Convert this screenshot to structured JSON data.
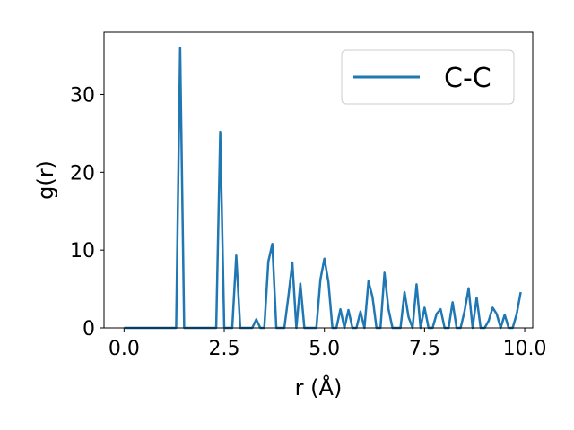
{
  "chart_data": {
    "type": "line",
    "title": "",
    "xlabel": "r (Å)",
    "ylabel": "g(r)",
    "xlim": [
      -0.5,
      10.2
    ],
    "ylim": [
      0,
      38
    ],
    "xticks": [
      0.0,
      2.5,
      5.0,
      7.5,
      10.0
    ],
    "xtick_labels": [
      "0.0",
      "2.5",
      "5.0",
      "7.5",
      "10.0"
    ],
    "yticks": [
      0,
      10,
      20,
      30
    ],
    "ytick_labels": [
      "0",
      "10",
      "20",
      "30"
    ],
    "grid": false,
    "legend_position": "top-right",
    "series": [
      {
        "name": "C-C",
        "color": "#1f77b4",
        "x": [
          0.0,
          0.1,
          0.2,
          0.3,
          0.4,
          0.5,
          0.6,
          0.7,
          0.8,
          0.9,
          1.0,
          1.1,
          1.2,
          1.3,
          1.4,
          1.5,
          1.6,
          1.7,
          1.8,
          1.9,
          2.0,
          2.1,
          2.2,
          2.3,
          2.4,
          2.5,
          2.6,
          2.7,
          2.8,
          2.9,
          3.0,
          3.1,
          3.2,
          3.3,
          3.4,
          3.5,
          3.6,
          3.7,
          3.8,
          3.9,
          4.0,
          4.1,
          4.2,
          4.3,
          4.4,
          4.5,
          4.6,
          4.7,
          4.8,
          4.9,
          5.0,
          5.1,
          5.2,
          5.3,
          5.4,
          5.5,
          5.6,
          5.7,
          5.8,
          5.9,
          6.0,
          6.1,
          6.2,
          6.3,
          6.4,
          6.5,
          6.6,
          6.7,
          6.8,
          6.9,
          7.0,
          7.1,
          7.2,
          7.3,
          7.4,
          7.5,
          7.6,
          7.7,
          7.8,
          7.9,
          8.0,
          8.1,
          8.2,
          8.3,
          8.4,
          8.5,
          8.6,
          8.7,
          8.8,
          8.9,
          9.0,
          9.1,
          9.2,
          9.3,
          9.4,
          9.5,
          9.6,
          9.7,
          9.8,
          9.9
        ],
        "y": [
          0,
          0,
          0,
          0,
          0,
          0,
          0,
          0,
          0,
          0,
          0,
          0,
          0,
          0,
          36,
          0,
          0,
          0,
          0,
          0,
          0,
          0,
          0,
          0,
          25.2,
          0,
          0,
          0,
          9.3,
          0,
          0,
          0,
          0,
          1.1,
          0,
          0,
          8.5,
          10.8,
          0,
          0,
          0,
          4.0,
          8.4,
          0,
          5.7,
          0,
          0,
          0,
          0,
          6.2,
          8.9,
          5.9,
          0,
          0,
          2.4,
          0,
          2.3,
          0,
          0,
          2.1,
          0,
          6.0,
          4.0,
          0,
          0,
          7.1,
          2.4,
          0,
          0,
          0,
          4.6,
          1.4,
          0,
          5.6,
          0,
          2.6,
          0,
          0,
          1.8,
          2.4,
          0,
          0,
          3.3,
          0,
          0,
          2.2,
          5.1,
          0,
          3.9,
          0,
          0,
          0.9,
          2.6,
          1.8,
          0,
          1.7,
          0,
          0,
          1.8,
          4.6
        ]
      }
    ]
  }
}
